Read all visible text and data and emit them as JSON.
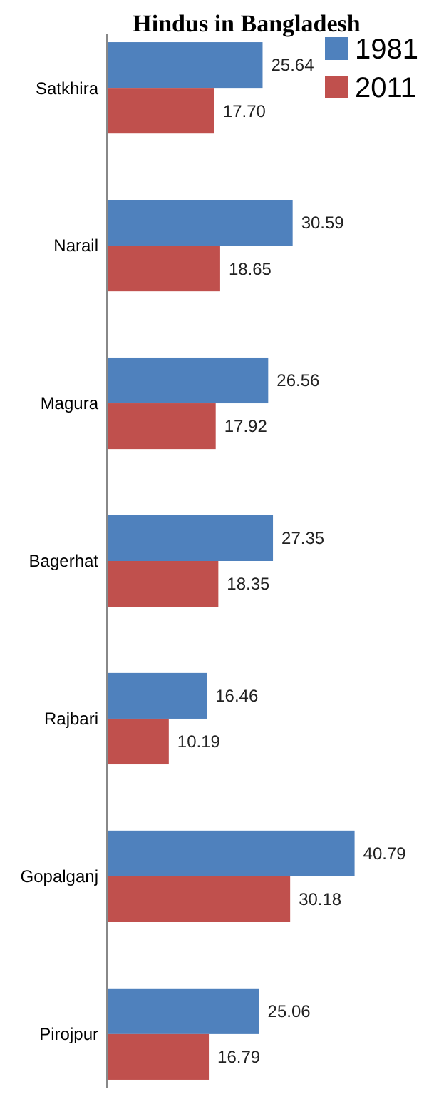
{
  "chart_data": {
    "type": "bar",
    "orientation": "horizontal",
    "title": "Hindus in Bangladesh",
    "categories": [
      "Satkhira",
      "Narail",
      "Magura",
      "Bagerhat",
      "Rajbari",
      "Gopalganj",
      "Pirojpur"
    ],
    "series": [
      {
        "name": "1981",
        "color": "#4f81bd",
        "values": [
          25.64,
          30.59,
          26.56,
          27.35,
          16.46,
          40.79,
          25.06
        ],
        "value_labels": [
          "25.64",
          "30.59",
          "26.56",
          "27.35",
          "16.46",
          "40.79",
          "25.06"
        ]
      },
      {
        "name": "2011",
        "color": "#c0504d",
        "values": [
          17.7,
          18.65,
          17.92,
          18.35,
          10.19,
          30.18,
          16.79
        ],
        "value_labels": [
          "17.70",
          "18.65",
          "17.92",
          "18.35",
          "10.19",
          "30.18",
          "16.79"
        ]
      }
    ],
    "legend": "top right",
    "grid": false
  }
}
